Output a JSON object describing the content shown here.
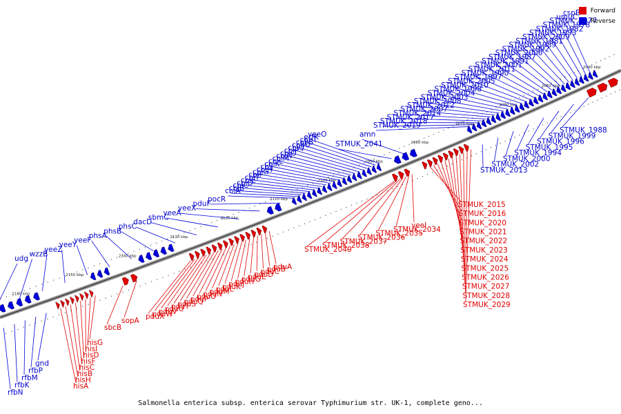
{
  "caption": "Salmonella enterica subsp. enterica serovar Typhimurium str. UK-1, complete geno...",
  "colors": {
    "forward": "#e00000",
    "reverse": "#0000dd",
    "backbone": "#777777"
  },
  "legend": [
    {
      "label": "Forward",
      "color": "#e00000"
    },
    {
      "label": "Reverse",
      "color": "#0000dd"
    }
  ],
  "ticks": [
    "2040 kbp",
    "2050 kbp",
    "2060 kbp",
    "2070 kbp",
    "2080 kbp",
    "2090 kbp",
    "2100 kbp",
    "2110 kbp",
    "2120 kbp",
    "2130 kbp",
    "2140 kbp",
    "2150 kbp",
    "2160 kbp"
  ],
  "forward_genes": [
    "hisA",
    "hisH",
    "hisB",
    "hisC",
    "hisF",
    "hisD",
    "hisI",
    "hisG",
    "sbcB",
    "sopA",
    "pduX",
    "pduW",
    "pduV",
    "pduU",
    "pduT",
    "pduS",
    "pduQ",
    "pduP",
    "pduO",
    "pduN",
    "pduM",
    "pduL",
    "pduK",
    "pduJ",
    "pduH",
    "pduG",
    "pduE",
    "pduD",
    "pduC",
    "pduB",
    "pduA",
    "STMUK_2040",
    "STMUK_2038",
    "STMUK_2037",
    "STMUK_2036",
    "STMUK_2035",
    "STMUK_2034",
    "yeeI",
    "STMUK_2015",
    "STMUK_2016",
    "STMUK_2020",
    "STMUK_2021",
    "STMUK_2022",
    "STMUK_2023",
    "STMUK_2024",
    "STMUK_2025",
    "STMUK_2026",
    "STMUK_2027",
    "STMUK_2028",
    "STMUK_2029"
  ],
  "reverse_genes_top": [
    "udg",
    "wzzB",
    "yeeZ",
    "yeeY",
    "yeeF",
    "phsA",
    "phsB",
    "phsC",
    "dacD",
    "sbmC",
    "yeeA",
    "yeeX",
    "pduF",
    "pocR",
    "cbiA",
    "cbiB",
    "cbiC",
    "cbiD",
    "cbiE",
    "cbiT",
    "cbiF",
    "cbiG",
    "cbiH",
    "cbiJ",
    "cbiK",
    "cbiL",
    "cbiM",
    "cbiN",
    "cbiO",
    "cbiP",
    "cbiQ",
    "cobU",
    "cobS",
    "cobT",
    "erfK",
    "yeeO",
    "STMUK_2041",
    "amn",
    "STMUK_2019",
    "STMUK_2018",
    "STMUK_2017",
    "STMUK_2014",
    "STMUK_2007",
    "STMUK_2012",
    "STMUK_2008",
    "STMUK_2003",
    "STMUK_2004",
    "STMUK_1998",
    "STMUK_2010",
    "STMUK_2005",
    "STMUK_1997",
    "STMUK_1990",
    "STMUK_2011",
    "STMUK_2001",
    "STMUK_1991",
    "STMUK_1987",
    "STMUK_2006",
    "STMUK_1992",
    "STMUK_1989",
    "STMUK_1981",
    "STMUK_2009",
    "STMUK_1993",
    "STMUK_1982",
    "STMUK_1978",
    "STMUK_1977",
    "umuC",
    "cspB"
  ],
  "reverse_genes_bottom": [
    "rfbN",
    "rfbK",
    "rfbM",
    "rfbP",
    "gnd",
    "STMUK_2013",
    "STMUK_2002",
    "STMUK_2000",
    "STMUK_1994",
    "STMUK_1995",
    "STMUK_1996",
    "STMUK_1999",
    "STMUK_1988"
  ]
}
